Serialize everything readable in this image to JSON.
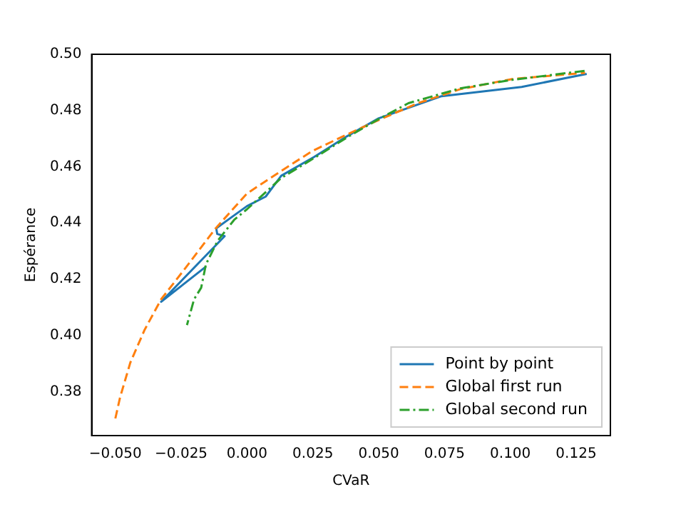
{
  "chart_data": {
    "type": "line",
    "xlabel": "CVaR",
    "ylabel": "Espérance",
    "xlim": [
      -0.059,
      0.138
    ],
    "ylim": [
      0.3644,
      0.5
    ],
    "xticks": [
      {
        "value": -0.05,
        "label": "−0.050"
      },
      {
        "value": -0.025,
        "label": "−0.025"
      },
      {
        "value": 0,
        "label": "0.000"
      },
      {
        "value": 0.025,
        "label": "0.025"
      },
      {
        "value": 0.05,
        "label": "0.050"
      },
      {
        "value": 0.075,
        "label": "0.075"
      },
      {
        "value": 0.1,
        "label": "0.100"
      },
      {
        "value": 0.125,
        "label": "0.125"
      }
    ],
    "yticks": [
      {
        "value": 0.38,
        "label": "0.38"
      },
      {
        "value": 0.4,
        "label": "0.40"
      },
      {
        "value": 0.42,
        "label": "0.42"
      },
      {
        "value": 0.44,
        "label": "0.44"
      },
      {
        "value": 0.46,
        "label": "0.46"
      },
      {
        "value": 0.48,
        "label": "0.48"
      },
      {
        "value": 0.5,
        "label": "0.50"
      }
    ],
    "legend": "bottom right",
    "grid": false,
    "marker": "none",
    "series": [
      {
        "name": "Point by point",
        "color": "#1f77b4",
        "line_style": "solid",
        "x": [
          0.129,
          0.1043,
          0.0739,
          0.0497,
          0.0381,
          0.0255,
          0.013,
          0.0071,
          0,
          -0.0049,
          -0.0117,
          -0.0113,
          -0.0085,
          -0.0326,
          -0.0156
        ],
        "values": [
          0.493,
          0.4884,
          0.4851,
          0.4771,
          0.4709,
          0.4635,
          0.4568,
          0.4494,
          0.446,
          0.4427,
          0.4381,
          0.4361,
          0.4353,
          0.412,
          0.4245
        ]
      },
      {
        "name": "Global first run",
        "color": "#ff7f0e",
        "line_style": "dashed",
        "x": [
          -0.05,
          -0.0482,
          -0.0443,
          -0.0389,
          -0.0326,
          -0.0246,
          -0.012,
          0,
          0.013,
          0.0246,
          0.038,
          0.0497,
          0.0649,
          0.081,
          0.1007,
          0.1284
        ],
        "values": [
          0.3705,
          0.378,
          0.3904,
          0.402,
          0.4129,
          0.4225,
          0.438,
          0.4505,
          0.4585,
          0.4655,
          0.4715,
          0.4765,
          0.4826,
          0.4876,
          0.4912,
          0.4934
        ]
      },
      {
        "name": "Global second run",
        "color": "#2ca02c",
        "line_style": "dashdot",
        "x": [
          0.1282,
          0.1007,
          0.081,
          0.0613,
          0.0497,
          0.0381,
          0.0255,
          0.013,
          0,
          -0.0049,
          -0.0112,
          -0.0156,
          -0.0174,
          -0.0201,
          -0.0228
        ],
        "values": [
          0.4941,
          0.4909,
          0.4879,
          0.4826,
          0.4768,
          0.4705,
          0.4631,
          0.456,
          0.4449,
          0.4411,
          0.4336,
          0.4253,
          0.417,
          0.4129,
          0.4037
        ]
      }
    ]
  }
}
